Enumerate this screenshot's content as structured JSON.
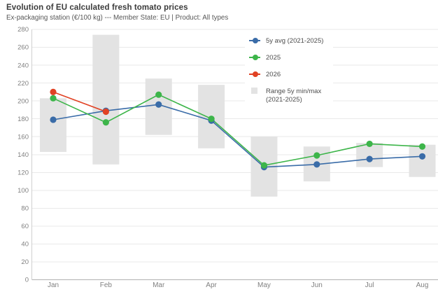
{
  "header": {
    "title": "Evolution of EU calculated fresh tomato prices",
    "subtitle": "Ex-packaging station (€/100 kg) --- Member State: EU | Product: All types"
  },
  "chart_data": {
    "type": "line",
    "title": "Evolution of EU calculated fresh tomato prices",
    "subtitle": "Ex-packaging station (€/100 kg) --- Member State: EU | Product: All types",
    "categories": [
      "Jan",
      "Feb",
      "Mar",
      "Apr",
      "May",
      "Jun",
      "Jul",
      "Aug"
    ],
    "xlabel": "",
    "ylabel": "",
    "ylim": [
      0,
      280
    ],
    "ytick_step": 20,
    "grid": true,
    "legend_position": "top-right-inside",
    "series": [
      {
        "name": "5y avg (2021-2025)",
        "type": "line",
        "color": "#3a6ca8",
        "values": [
          179,
          189,
          196,
          178,
          126,
          129,
          135,
          138
        ]
      },
      {
        "name": "2025",
        "type": "line",
        "color": "#3db54a",
        "values": [
          203,
          176,
          207,
          180,
          128,
          139,
          152,
          149
        ]
      },
      {
        "name": "2026",
        "type": "line",
        "color": "#e14224",
        "values": [
          210,
          188,
          null,
          null,
          null,
          null,
          null,
          null
        ]
      },
      {
        "name": "Range 5y min/max (2021-2025)",
        "type": "range",
        "color": "#e3e3e3",
        "min": [
          143,
          129,
          162,
          147,
          93,
          110,
          126,
          115
        ],
        "max": [
          203,
          274,
          225,
          218,
          160,
          149,
          153,
          151
        ]
      }
    ]
  }
}
